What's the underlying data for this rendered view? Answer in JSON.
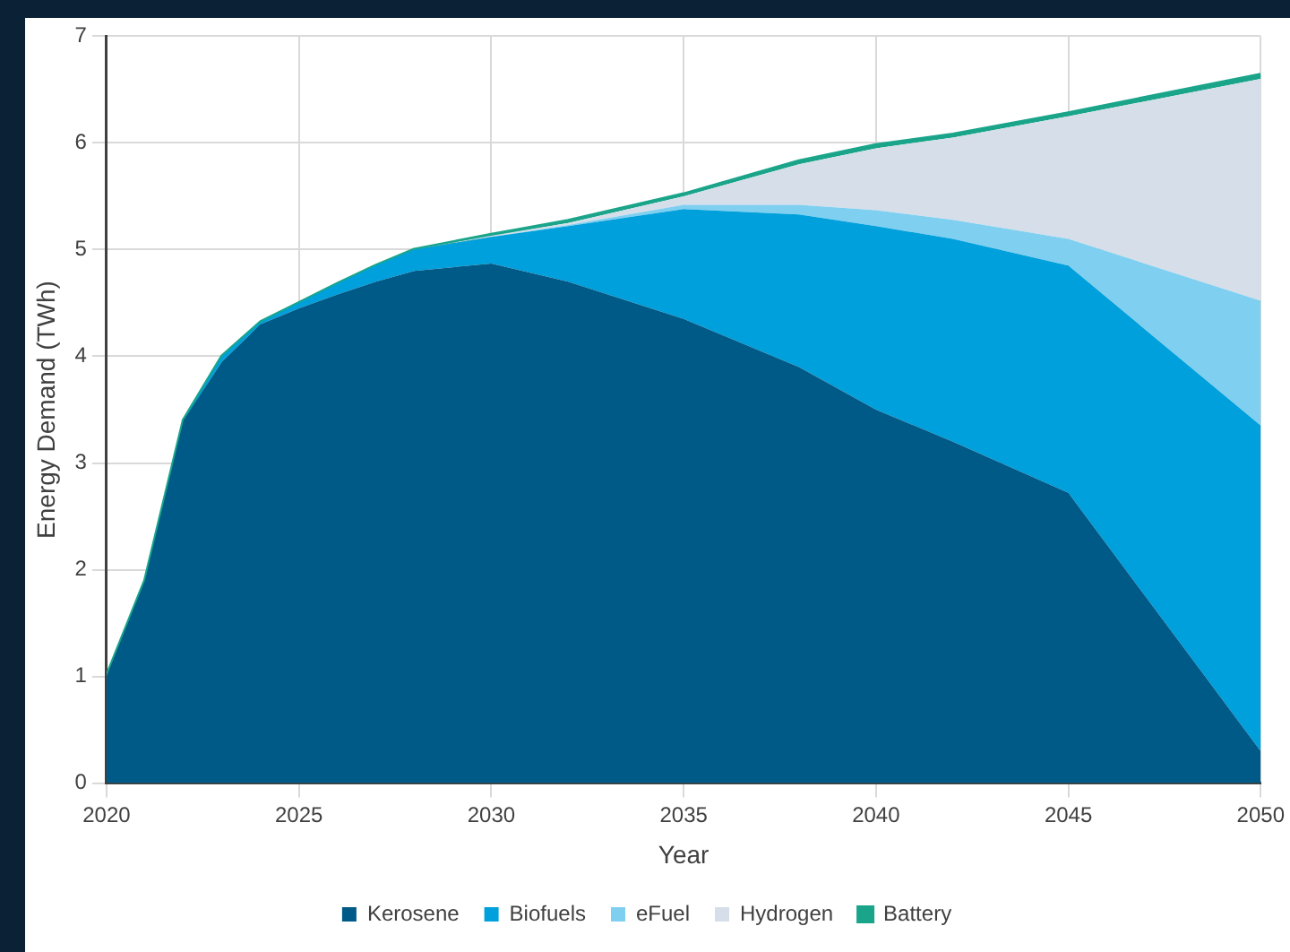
{
  "chart_data": {
    "type": "area",
    "stacked": true,
    "xlabel": "Year",
    "ylabel": "Energy Demand (TWh)",
    "x": [
      2020,
      2021,
      2022,
      2023,
      2024,
      2025,
      2026,
      2027,
      2028,
      2030,
      2032,
      2035,
      2038,
      2040,
      2042,
      2045,
      2050
    ],
    "xlim": [
      2020,
      2050
    ],
    "xticks": [
      2020,
      2025,
      2030,
      2035,
      2040,
      2045,
      2050
    ],
    "ylim": [
      0,
      7
    ],
    "yticks": [
      0,
      1,
      2,
      3,
      4,
      5,
      6,
      7
    ],
    "grid": true,
    "legend": "bottom",
    "series": [
      {
        "name": "Kerosene",
        "color": "#005a87",
        "values": [
          1.0,
          1.9,
          3.4,
          3.95,
          4.3,
          4.45,
          4.58,
          4.7,
          4.8,
          4.87,
          4.7,
          4.35,
          3.9,
          3.5,
          3.2,
          2.72,
          0.3
        ]
      },
      {
        "name": "Biofuels",
        "color": "#00a0dc",
        "values": [
          0,
          0,
          0,
          0.05,
          0.02,
          0.05,
          0.1,
          0.15,
          0.2,
          0.25,
          0.52,
          1.03,
          1.43,
          1.72,
          1.9,
          2.13,
          3.05
        ]
      },
      {
        "name": "eFuel",
        "color": "#7fcff0",
        "values": [
          0,
          0,
          0,
          0,
          0,
          0,
          0,
          0,
          0,
          0,
          0.01,
          0.04,
          0.09,
          0.15,
          0.18,
          0.25,
          1.17
        ]
      },
      {
        "name": "Hydrogen",
        "color": "#d6dfe9",
        "values": [
          0,
          0,
          0,
          0,
          0,
          0,
          0,
          0,
          0,
          0.01,
          0.02,
          0.08,
          0.38,
          0.58,
          0.77,
          1.15,
          2.08
        ]
      },
      {
        "name": "Battery",
        "color": "#1aa58a",
        "values": [
          0,
          0,
          0,
          0,
          0,
          0,
          0,
          0,
          0,
          0.01,
          0.02,
          0.02,
          0.03,
          0.03,
          0.03,
          0.03,
          0.04
        ]
      }
    ]
  }
}
